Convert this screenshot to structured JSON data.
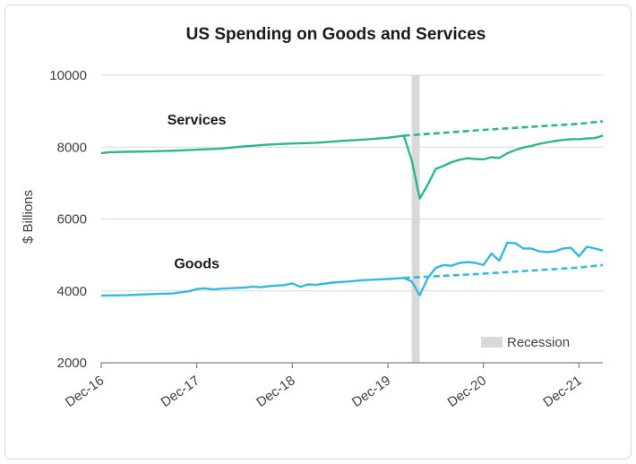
{
  "chart_data": {
    "type": "line",
    "title": "US Spending on Goods and Services",
    "ylabel": "$ Billions",
    "xlabel": "",
    "ylim": [
      2000,
      10000
    ],
    "yticks": [
      2000,
      4000,
      6000,
      8000,
      10000
    ],
    "xticks": [
      "Dec-16",
      "Dec-17",
      "Dec-18",
      "Dec-19",
      "Dec-20",
      "Dec-21"
    ],
    "x_start": "Dec-16",
    "x_end": "Mar-22",
    "grid": "horizontal",
    "recession": {
      "label": "Recession",
      "start": "Mar-20",
      "end": "Apr-20",
      "color": "#d9d9d9"
    },
    "series": [
      {
        "name": "Services",
        "style": "solid",
        "color": "#2bb592",
        "points": [
          [
            "Dec-16",
            7830
          ],
          [
            "Jan-17",
            7860
          ],
          [
            "Mar-17",
            7870
          ],
          [
            "Jun-17",
            7880
          ],
          [
            "Sep-17",
            7900
          ],
          [
            "Dec-17",
            7930
          ],
          [
            "Mar-18",
            7960
          ],
          [
            "Jun-18",
            8020
          ],
          [
            "Sep-18",
            8070
          ],
          [
            "Dec-18",
            8100
          ],
          [
            "Mar-19",
            8120
          ],
          [
            "Jun-19",
            8170
          ],
          [
            "Sep-19",
            8210
          ],
          [
            "Dec-19",
            8260
          ],
          [
            "Feb-20",
            8320
          ],
          [
            "Mar-20",
            7630
          ],
          [
            "Apr-20",
            6570
          ],
          [
            "May-20",
            6950
          ],
          [
            "Jun-20",
            7390
          ],
          [
            "Jul-20",
            7480
          ],
          [
            "Aug-20",
            7580
          ],
          [
            "Sep-20",
            7650
          ],
          [
            "Oct-20",
            7690
          ],
          [
            "Nov-20",
            7670
          ],
          [
            "Dec-20",
            7660
          ],
          [
            "Jan-21",
            7720
          ],
          [
            "Feb-21",
            7700
          ],
          [
            "Mar-21",
            7830
          ],
          [
            "Apr-21",
            7920
          ],
          [
            "May-21",
            7990
          ],
          [
            "Jun-21",
            8030
          ],
          [
            "Jul-21",
            8090
          ],
          [
            "Aug-21",
            8130
          ],
          [
            "Sep-21",
            8170
          ],
          [
            "Oct-21",
            8200
          ],
          [
            "Nov-21",
            8220
          ],
          [
            "Dec-21",
            8220
          ],
          [
            "Jan-22",
            8240
          ],
          [
            "Feb-22",
            8250
          ],
          [
            "Mar-22",
            8320
          ]
        ]
      },
      {
        "name": "",
        "style": "dashed",
        "color": "#2bb592",
        "points": [
          [
            "Feb-20",
            8320
          ],
          [
            "Dec-20",
            8480
          ],
          [
            "Dec-21",
            8650
          ],
          [
            "Mar-22",
            8720
          ]
        ]
      },
      {
        "name": "Goods",
        "style": "solid",
        "color": "#33bbdd",
        "points": [
          [
            "Dec-16",
            3870
          ],
          [
            "Mar-17",
            3880
          ],
          [
            "Jun-17",
            3910
          ],
          [
            "Sep-17",
            3930
          ],
          [
            "Nov-17",
            3990
          ],
          [
            "Dec-17",
            4050
          ],
          [
            "Jan-18",
            4070
          ],
          [
            "Feb-18",
            4040
          ],
          [
            "Mar-18",
            4060
          ],
          [
            "Jun-18",
            4090
          ],
          [
            "Jul-18",
            4120
          ],
          [
            "Aug-18",
            4100
          ],
          [
            "Sep-18",
            4130
          ],
          [
            "Nov-18",
            4160
          ],
          [
            "Dec-18",
            4210
          ],
          [
            "Jan-19",
            4110
          ],
          [
            "Feb-19",
            4180
          ],
          [
            "Mar-19",
            4170
          ],
          [
            "May-19",
            4230
          ],
          [
            "Jul-19",
            4260
          ],
          [
            "Sep-19",
            4300
          ],
          [
            "Dec-19",
            4330
          ],
          [
            "Feb-20",
            4360
          ],
          [
            "Mar-20",
            4260
          ],
          [
            "Apr-20",
            3880
          ],
          [
            "May-20",
            4350
          ],
          [
            "Jun-20",
            4640
          ],
          [
            "Jul-20",
            4720
          ],
          [
            "Aug-20",
            4700
          ],
          [
            "Sep-20",
            4780
          ],
          [
            "Oct-20",
            4800
          ],
          [
            "Nov-20",
            4780
          ],
          [
            "Dec-20",
            4720
          ],
          [
            "Jan-21",
            5040
          ],
          [
            "Feb-21",
            4840
          ],
          [
            "Mar-21",
            5340
          ],
          [
            "Apr-21",
            5330
          ],
          [
            "May-21",
            5180
          ],
          [
            "Jun-21",
            5180
          ],
          [
            "Jul-21",
            5100
          ],
          [
            "Aug-21",
            5080
          ],
          [
            "Sep-21",
            5100
          ],
          [
            "Oct-21",
            5180
          ],
          [
            "Nov-21",
            5200
          ],
          [
            "Dec-21",
            4960
          ],
          [
            "Jan-22",
            5230
          ],
          [
            "Feb-22",
            5180
          ],
          [
            "Mar-22",
            5120
          ]
        ]
      },
      {
        "name": "",
        "style": "dashed",
        "color": "#33bbdd",
        "points": [
          [
            "Feb-20",
            4360
          ],
          [
            "Dec-20",
            4480
          ],
          [
            "Dec-21",
            4650
          ],
          [
            "Mar-22",
            4720
          ]
        ]
      }
    ]
  }
}
